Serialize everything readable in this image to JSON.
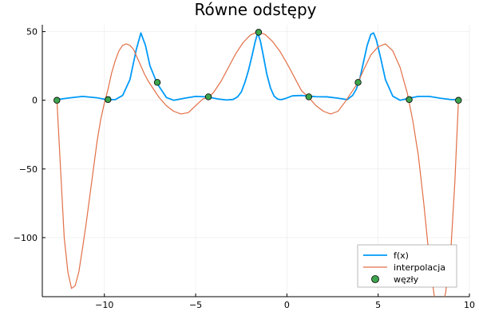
{
  "chart_data": {
    "type": "line",
    "title": "Równe odstępy",
    "xlabel": "",
    "ylabel": "",
    "xlim": [
      -13.4,
      10.0
    ],
    "ylim": [
      -143,
      55
    ],
    "x_ticks": [
      -10,
      -5,
      0,
      5,
      10
    ],
    "x_tick_labels": [
      "−10",
      "−5",
      "0",
      "5",
      "10"
    ],
    "y_ticks": [
      50,
      0,
      -50,
      -100
    ],
    "y_tick_labels": [
      "50",
      "0",
      "−50",
      "−100"
    ],
    "grid": true,
    "legend_position": "bottom-right",
    "colors": {
      "f": "#009af9",
      "interp": "#e26f46",
      "nodes": "#3ea44e"
    },
    "series": [
      {
        "name": "f(x)",
        "kind": "line",
        "color": "#009af9",
        "x": [
          -12.6,
          -12.0,
          -11.2,
          -10.4,
          -9.9,
          -9.4,
          -9.0,
          -8.6,
          -8.25,
          -8.0,
          -7.75,
          -7.5,
          -7.1,
          -6.6,
          -6.2,
          -5.6,
          -5.0,
          -4.4,
          -3.8,
          -3.3,
          -2.95,
          -2.7,
          -2.5,
          -2.3,
          -2.1,
          -1.9,
          -1.75,
          -1.6,
          -1.45,
          -1.3,
          -1.1,
          -0.9,
          -0.7,
          -0.5,
          -0.3,
          -0.1,
          0.3,
          0.8,
          1.2,
          1.6,
          2.2,
          2.8,
          3.3,
          3.6,
          3.8,
          4.0,
          4.2,
          4.4,
          4.6,
          4.75,
          4.9,
          5.15,
          5.4,
          5.8,
          6.2,
          6.7,
          7.2,
          7.8,
          8.4,
          9.0,
          9.4
        ],
        "y": [
          0.5,
          1.6,
          2.8,
          1.8,
          0.5,
          0.5,
          3.5,
          15,
          37,
          49,
          40,
          25,
          12,
          2,
          0,
          1.5,
          2.8,
          2.5,
          1,
          0.2,
          0.6,
          2.5,
          6,
          13,
          22,
          33,
          42,
          49,
          43,
          33,
          19,
          9,
          3,
          0.8,
          0.5,
          1.2,
          3.2,
          3.5,
          3.0,
          2.6,
          2.5,
          1.5,
          0.5,
          3.5,
          8,
          16,
          28,
          40,
          48,
          49,
          44,
          30,
          15,
          3,
          0,
          1.5,
          2.8,
          2.8,
          1.5,
          0.5,
          0.5
        ]
      },
      {
        "name": "interpolacja",
        "kind": "line",
        "color": "#e26f46",
        "x": [
          -12.6,
          -12.4,
          -12.2,
          -12.0,
          -11.8,
          -11.6,
          -11.4,
          -11.2,
          -11.0,
          -10.8,
          -10.6,
          -10.4,
          -10.2,
          -10.0,
          -9.8,
          -9.6,
          -9.4,
          -9.2,
          -9.0,
          -8.8,
          -8.6,
          -8.4,
          -8.2,
          -8.0,
          -7.8,
          -7.6,
          -7.4,
          -7.2,
          -7.0,
          -6.6,
          -6.2,
          -5.8,
          -5.4,
          -5.0,
          -4.6,
          -4.3,
          -4.0,
          -3.6,
          -3.2,
          -2.8,
          -2.4,
          -2.0,
          -1.6,
          -1.2,
          -0.8,
          -0.4,
          0.0,
          0.4,
          0.8,
          1.2,
          1.6,
          2.0,
          2.4,
          2.8,
          3.2,
          3.6,
          3.9,
          4.2,
          4.6,
          5.0,
          5.4,
          5.8,
          6.2,
          6.6,
          6.9,
          7.2,
          7.5,
          7.8,
          8.1,
          8.4,
          8.7,
          9.0,
          9.2,
          9.4
        ],
        "y": [
          0,
          -50,
          -100,
          -125,
          -137,
          -135,
          -125,
          -108,
          -90,
          -70,
          -50,
          -30,
          -14,
          -2,
          8,
          20,
          29,
          36,
          40,
          41,
          40,
          37,
          31,
          25,
          19,
          14,
          10,
          6,
          2,
          -4,
          -8,
          -10,
          -9,
          -4,
          1,
          2,
          6,
          14,
          24,
          34,
          42,
          47.5,
          49.8,
          48,
          43,
          36,
          27,
          17,
          7,
          2,
          -4,
          -8,
          -10,
          -8,
          -1,
          7,
          13,
          22,
          33,
          39,
          41,
          36,
          24,
          5,
          -15,
          -40,
          -75,
          -115,
          -145,
          -155,
          -140,
          -105,
          -60,
          0
        ]
      },
      {
        "name": "węzły",
        "kind": "scatter",
        "color": "#3ea44e",
        "x": [
          -12.6,
          -9.8,
          -7.1,
          -4.3,
          -1.55,
          1.2,
          3.9,
          6.7,
          9.4
        ],
        "y": [
          0,
          0.5,
          13,
          2.5,
          49.5,
          2.5,
          13,
          0.5,
          0
        ]
      }
    ]
  }
}
